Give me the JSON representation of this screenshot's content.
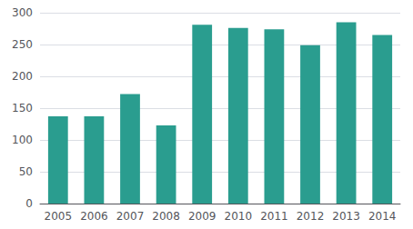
{
  "chart_data": {
    "type": "bar",
    "categories": [
      "2005",
      "2006",
      "2007",
      "2008",
      "2009",
      "2010",
      "2011",
      "2012",
      "2013",
      "2014"
    ],
    "values": [
      137,
      137,
      172,
      123,
      281,
      276,
      274,
      249,
      285,
      265
    ],
    "color": "#2a9d8f",
    "ylim": [
      0,
      300
    ],
    "yticks": [
      0,
      50,
      100,
      150,
      200,
      250,
      300
    ],
    "grid": true
  }
}
